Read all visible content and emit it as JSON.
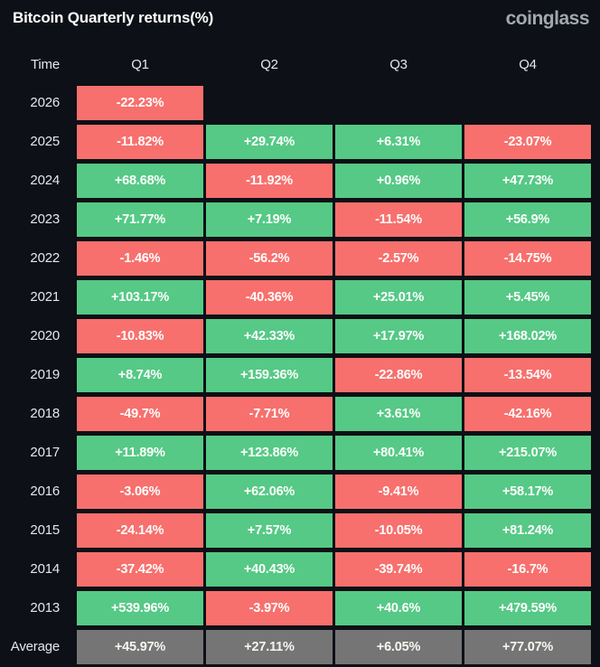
{
  "header": {
    "title": "Bitcoin Quarterly returns(%)",
    "logo_text": "coinglass"
  },
  "colors": {
    "background": "#0d1016",
    "positive_cell": "#55c985",
    "negative_cell": "#f7706d",
    "average_cell": "#757575",
    "title_text": "#ffffff",
    "logo_text": "#a2a8b1",
    "label_text": "#e4e8ee",
    "cell_text": "#fdfdfd"
  },
  "chart_data": {
    "type": "table",
    "title": "Bitcoin Quarterly returns(%)",
    "columns": [
      "Time",
      "Q1",
      "Q2",
      "Q3",
      "Q4"
    ],
    "rows": [
      {
        "time": "2026",
        "values": [
          "-22.23%",
          "",
          "",
          ""
        ]
      },
      {
        "time": "2025",
        "values": [
          "-11.82%",
          "+29.74%",
          "+6.31%",
          "-23.07%"
        ]
      },
      {
        "time": "2024",
        "values": [
          "+68.68%",
          "-11.92%",
          "+0.96%",
          "+47.73%"
        ]
      },
      {
        "time": "2023",
        "values": [
          "+71.77%",
          "+7.19%",
          "-11.54%",
          "+56.9%"
        ]
      },
      {
        "time": "2022",
        "values": [
          "-1.46%",
          "-56.2%",
          "-2.57%",
          "-14.75%"
        ]
      },
      {
        "time": "2021",
        "values": [
          "+103.17%",
          "-40.36%",
          "+25.01%",
          "+5.45%"
        ]
      },
      {
        "time": "2020",
        "values": [
          "-10.83%",
          "+42.33%",
          "+17.97%",
          "+168.02%"
        ]
      },
      {
        "time": "2019",
        "values": [
          "+8.74%",
          "+159.36%",
          "-22.86%",
          "-13.54%"
        ]
      },
      {
        "time": "2018",
        "values": [
          "-49.7%",
          "-7.71%",
          "+3.61%",
          "-42.16%"
        ]
      },
      {
        "time": "2017",
        "values": [
          "+11.89%",
          "+123.86%",
          "+80.41%",
          "+215.07%"
        ]
      },
      {
        "time": "2016",
        "values": [
          "-3.06%",
          "+62.06%",
          "-9.41%",
          "+58.17%"
        ]
      },
      {
        "time": "2015",
        "values": [
          "-24.14%",
          "+7.57%",
          "-10.05%",
          "+81.24%"
        ]
      },
      {
        "time": "2014",
        "values": [
          "-37.42%",
          "+40.43%",
          "-39.74%",
          "-16.7%"
        ]
      },
      {
        "time": "2013",
        "values": [
          "+539.96%",
          "-3.97%",
          "+40.6%",
          "+479.59%"
        ]
      },
      {
        "time": "Average",
        "values": [
          "+45.97%",
          "+27.11%",
          "+6.05%",
          "+77.07%"
        ]
      }
    ]
  }
}
